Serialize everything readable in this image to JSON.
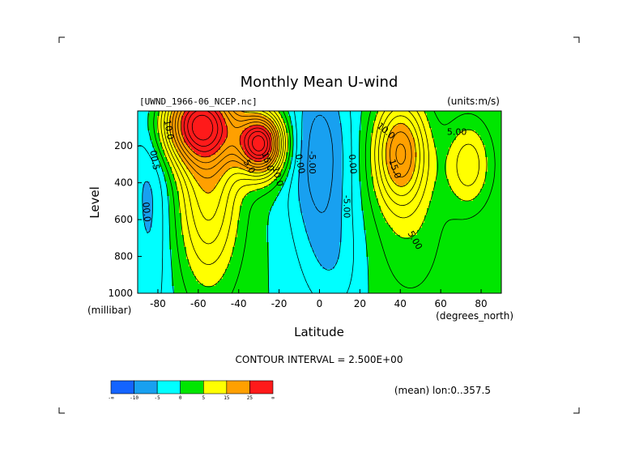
{
  "chart_data": {
    "type": "heatmap",
    "title": "Monthly Mean U-wind",
    "dataset_label": "[UWND_1966-06_NCEP.nc]",
    "units_label": "(units:m/s)",
    "xlabel": "Latitude",
    "xunit_label": "(degrees_north)",
    "ylabel": "Level",
    "yunit_label": "(millibar)",
    "xlim": [
      -90,
      90
    ],
    "ylim": [
      1000,
      10
    ],
    "x_ticks": [
      -80,
      -60,
      -40,
      -20,
      0,
      20,
      40,
      60,
      80
    ],
    "y_ticks": [
      200,
      400,
      600,
      800,
      1000
    ],
    "x_tick_labels": [
      "-80",
      "-60",
      "-40",
      "-20",
      "0",
      "20",
      "40",
      "60",
      "80"
    ],
    "y_tick_labels": [
      "200",
      "400",
      "600",
      "800",
      "1000"
    ],
    "contour_interval_text": "CONTOUR INTERVAL = 2.500E+00",
    "averaging_text": "(mean) lon:0..357.5",
    "color_levels": [
      -999,
      -10,
      -5,
      0,
      5,
      15,
      25,
      999
    ],
    "colorbar_labels": [
      "-∞",
      "-10",
      "-5",
      "0",
      "5",
      "15",
      "25",
      "∞"
    ],
    "colors": [
      "#1464ff",
      "#18a0f0",
      "#00ffff",
      "#00e600",
      "#ffff00",
      "#ffa000",
      "#ff1a1a"
    ],
    "contour_labels": [
      {
        "text": "10.0",
        "lat": -76,
        "p": 115,
        "rot": 80
      },
      {
        "text": "00.5",
        "lat": -83,
        "p": 280,
        "rot": 80
      },
      {
        "text": "00.0",
        "lat": -87,
        "p": 560,
        "rot": 85
      },
      {
        "text": "5.0",
        "lat": -36,
        "p": 320,
        "rot": 60
      },
      {
        "text": "15.0",
        "lat": -27,
        "p": 290,
        "rot": 70
      },
      {
        "text": "10.0",
        "lat": -22,
        "p": 370,
        "rot": 75
      },
      {
        "text": "0.00",
        "lat": -11,
        "p": 300,
        "rot": 80
      },
      {
        "text": "-5.00",
        "lat": -5,
        "p": 290,
        "rot": 90
      },
      {
        "text": "0.00",
        "lat": 15,
        "p": 300,
        "rot": 85
      },
      {
        "text": "-5.00",
        "lat": 12,
        "p": 530,
        "rot": 90
      },
      {
        "text": "10.0",
        "lat": 32,
        "p": 130,
        "rot": 40
      },
      {
        "text": "15.0",
        "lat": 36,
        "p": 330,
        "rot": 70
      },
      {
        "text": "5.00",
        "lat": 46,
        "p": 720,
        "rot": 60
      },
      {
        "text": "5.00",
        "lat": 68,
        "p": 140,
        "rot": 0
      }
    ]
  }
}
